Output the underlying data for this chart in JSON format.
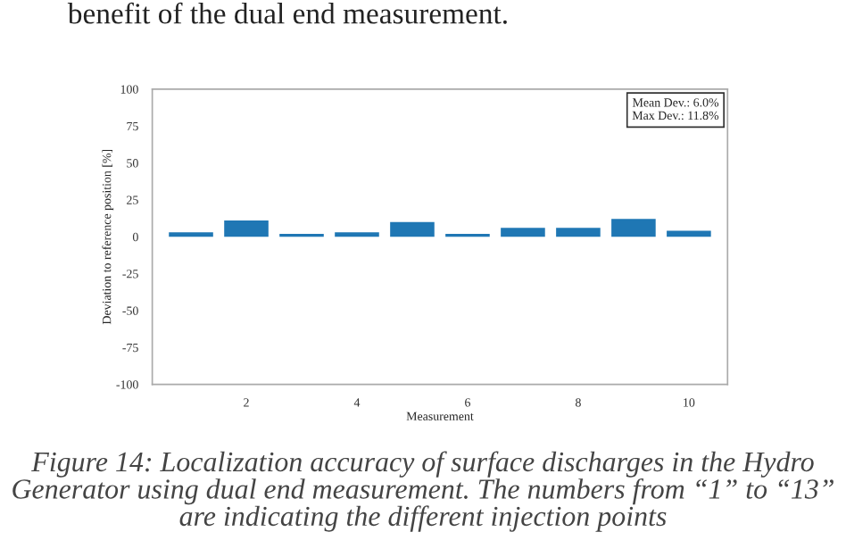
{
  "chart_data": {
    "type": "bar",
    "xlabel": "Measurement",
    "ylabel": "Deviation to reference position [%]",
    "x": [
      1,
      2,
      3,
      4,
      5,
      6,
      7,
      8,
      9,
      10
    ],
    "series": [
      {
        "color": "#1f77b4",
        "values": [
          3,
          11,
          2,
          3,
          10,
          2,
          6,
          6,
          12,
          4
        ]
      }
    ],
    "xlim": [
      0.3,
      10.7
    ],
    "xticks": [
      2,
      4,
      6,
      8,
      10
    ],
    "ylim": [
      -100,
      100
    ],
    "yticks": [
      {
        "value": -100,
        "label": "-100"
      },
      {
        "value": -75,
        "label": "-75"
      },
      {
        "value": -50,
        "label": "-50"
      },
      {
        "value": -25,
        "label": "-25"
      },
      0,
      25,
      50,
      75,
      100
    ],
    "grid": false,
    "legend": false,
    "annotations": [
      "benefit of the dual end measurement.",
      "Mean Dev.: 6.0%\nMax Dev.: 11.8%",
      "Figure 14: Localization accuracy of surface discharges in the Hydro Generator using dual end measurement. The numbers from “1” to “13” are indicating the different injection points"
    ]
  }
}
